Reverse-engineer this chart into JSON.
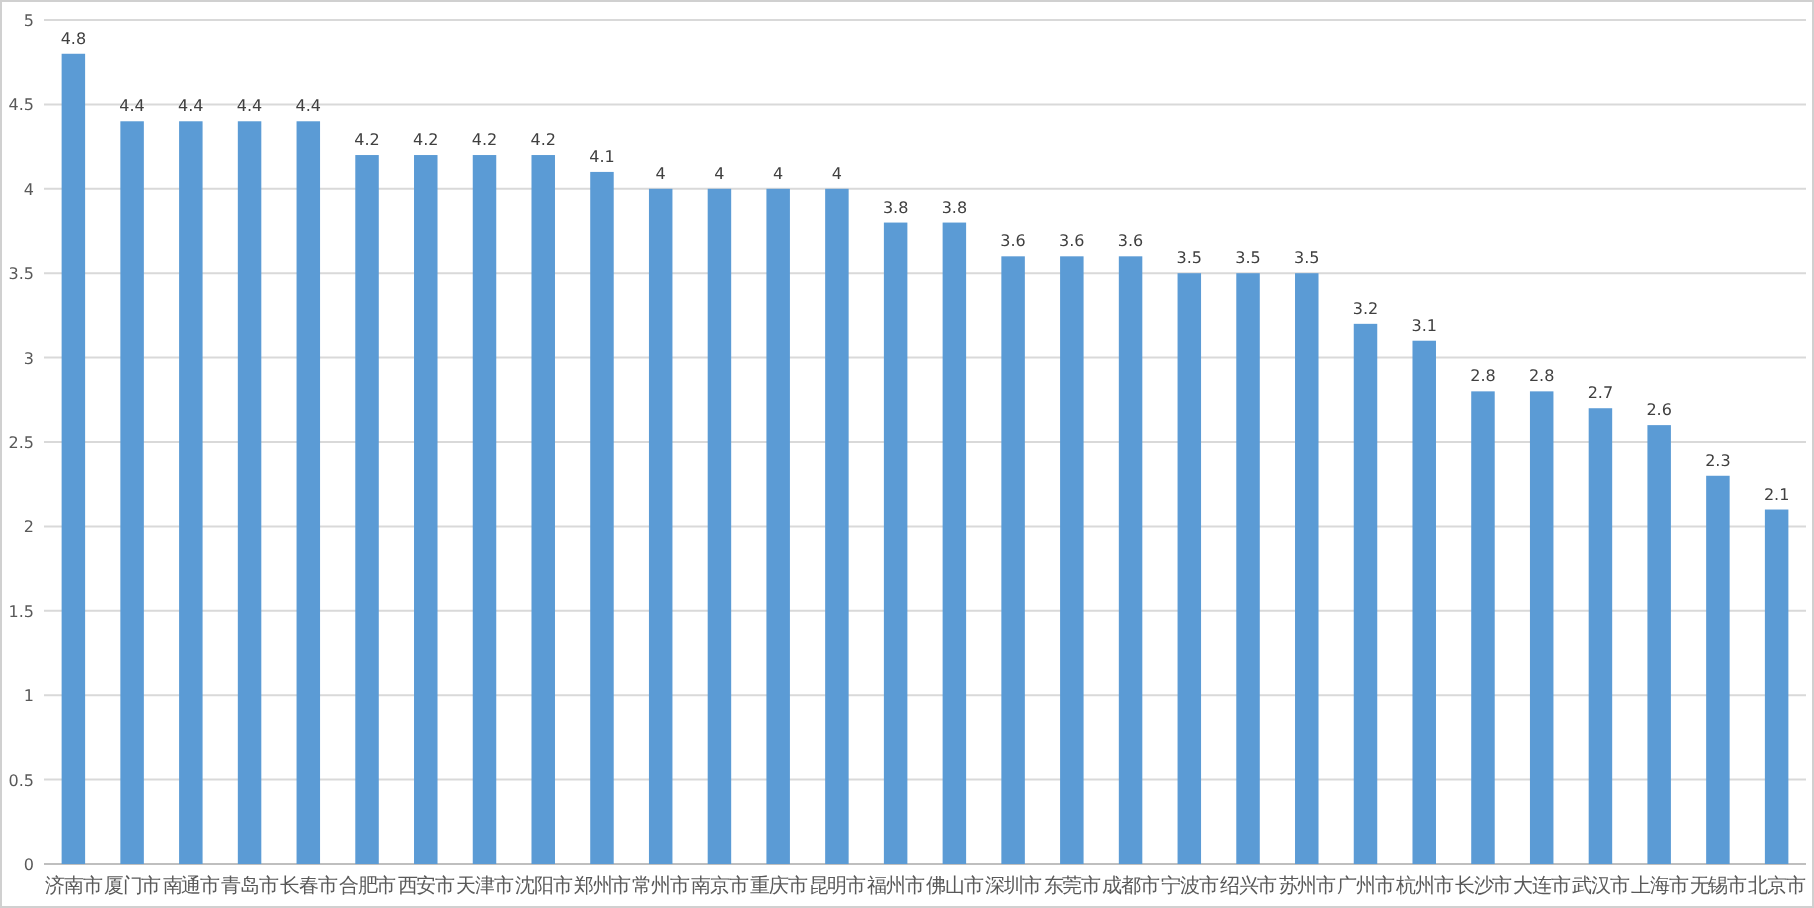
{
  "chart_data": {
    "type": "bar",
    "categories": [
      "济南市",
      "厦门市",
      "南通市",
      "青岛市",
      "长春市",
      "合肥市",
      "西安市",
      "天津市",
      "沈阳市",
      "郑州市",
      "常州市",
      "南京市",
      "重庆市",
      "昆明市",
      "福州市",
      "佛山市",
      "深圳市",
      "东莞市",
      "成都市",
      "宁波市",
      "绍兴市",
      "苏州市",
      "广州市",
      "杭州市",
      "长沙市",
      "大连市",
      "武汉市",
      "上海市",
      "无锡市",
      "北京市"
    ],
    "values": [
      4.8,
      4.4,
      4.4,
      4.4,
      4.4,
      4.2,
      4.2,
      4.2,
      4.2,
      4.1,
      4,
      4,
      4,
      4,
      3.8,
      3.8,
      3.6,
      3.6,
      3.6,
      3.5,
      3.5,
      3.5,
      3.2,
      3.1,
      2.8,
      2.8,
      2.7,
      2.6,
      2.3,
      2.1
    ],
    "color": "#5b9bd5",
    "ylim": [
      0,
      5
    ],
    "yticks": [
      0,
      0.5,
      1,
      1.5,
      2,
      2.5,
      3,
      3.5,
      4,
      4.5,
      5
    ],
    "grid": "y",
    "data_labels": true
  }
}
